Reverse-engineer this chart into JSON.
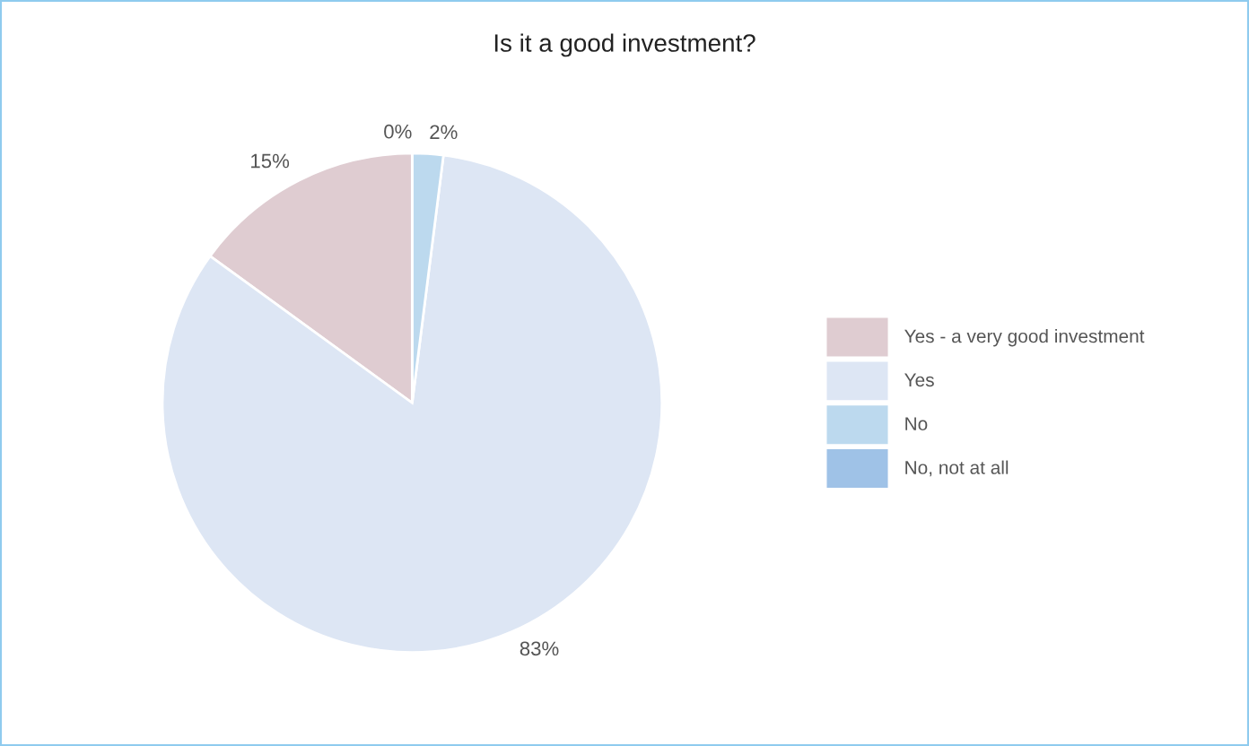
{
  "chart_data": {
    "type": "pie",
    "title": "Is it a good investment?",
    "categories": [
      "Yes - a very good investment",
      "Yes",
      "No",
      "No, not at all"
    ],
    "values": [
      15,
      83,
      2,
      0
    ],
    "value_labels": [
      "15%",
      "83%",
      "2%",
      "0%"
    ],
    "colors": [
      "#dfccd1",
      "#dde6f4",
      "#bcd9ee",
      "#9fc2e7"
    ],
    "legend": "right"
  }
}
